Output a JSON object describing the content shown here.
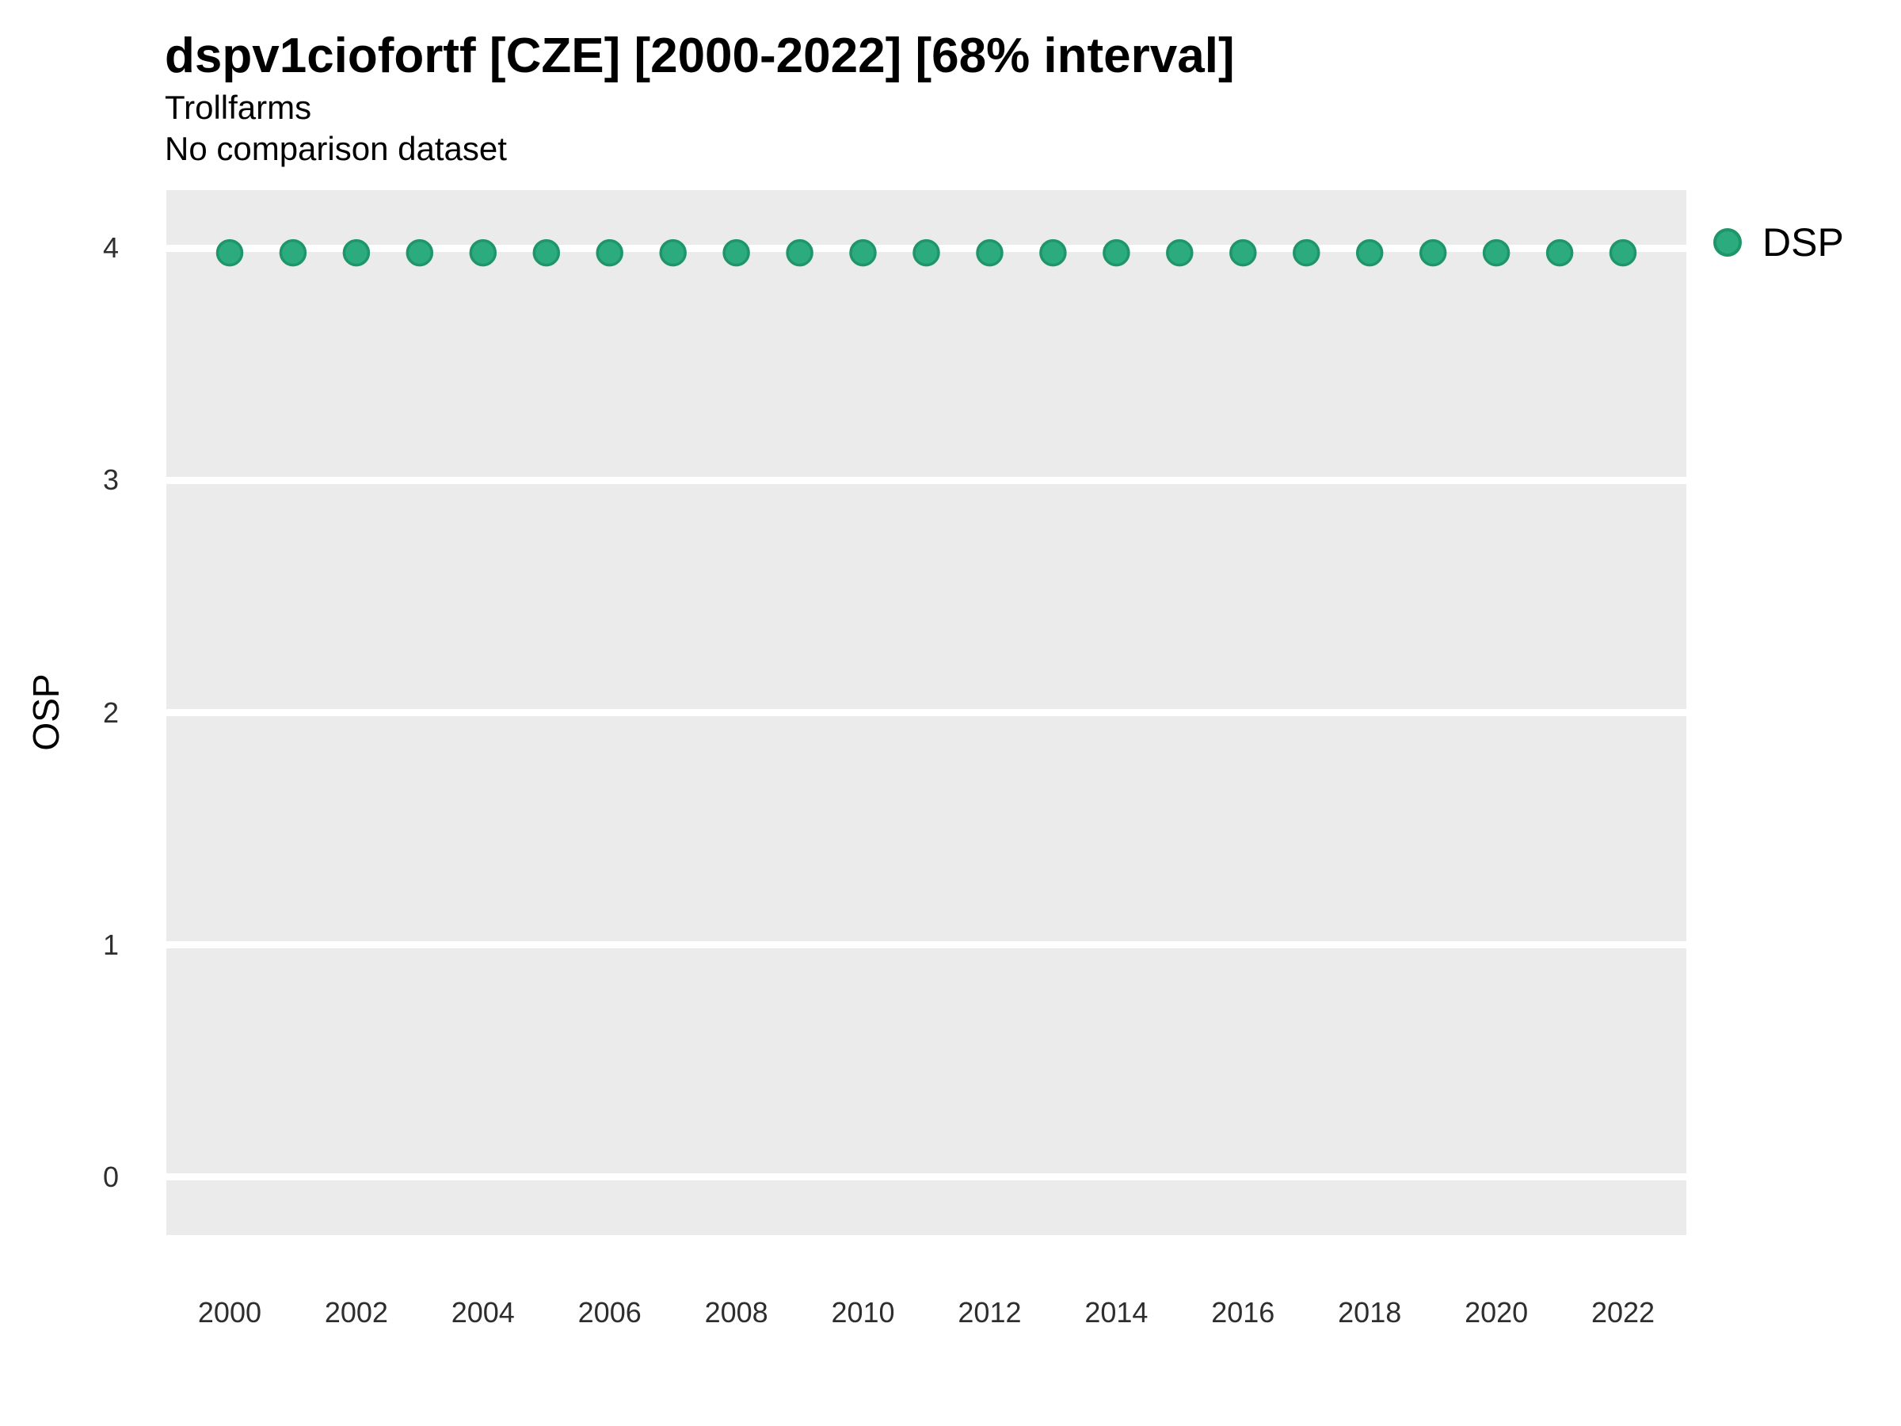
{
  "header": {
    "title": "dspv1ciofortf [CZE] [2000-2022] [68% interval]",
    "subtitle_line1": "Trollfarms",
    "subtitle_line2": "No comparison dataset"
  },
  "y_axis_title": "OSP",
  "legend": {
    "items": [
      {
        "label": "DSP",
        "color": "#2CAB7E",
        "border_color": "#1E9669"
      }
    ]
  },
  "chart_data": {
    "type": "scatter",
    "title": "dspv1ciofortf [CZE] [2000-2022] [68% interval]",
    "subtitle": [
      "Trollfarms",
      "No comparison dataset"
    ],
    "xlabel": "",
    "ylabel": "OSP",
    "x_ticks": [
      2000,
      2002,
      2004,
      2006,
      2008,
      2010,
      2012,
      2014,
      2016,
      2018,
      2020,
      2022
    ],
    "y_ticks": [
      0,
      1,
      2,
      3,
      4
    ],
    "xlim": [
      1999,
      2023
    ],
    "ylim": [
      -0.25,
      4.25
    ],
    "grid": "horizontal-major-only",
    "panel_background": "#EBEBEB",
    "gridline_color": "#FFFFFF",
    "legend_position": "right-top",
    "series": [
      {
        "name": "DSP",
        "point_color": "#2CAB7E",
        "point_stroke": "#1E9669",
        "x": [
          2000,
          2001,
          2002,
          2003,
          2004,
          2005,
          2006,
          2007,
          2008,
          2009,
          2010,
          2011,
          2012,
          2013,
          2014,
          2015,
          2016,
          2017,
          2018,
          2019,
          2020,
          2021,
          2022
        ],
        "y": [
          3.98,
          3.98,
          3.98,
          3.98,
          3.98,
          3.98,
          3.98,
          3.98,
          3.98,
          3.98,
          3.98,
          3.98,
          3.98,
          3.98,
          3.98,
          3.98,
          3.98,
          3.98,
          3.98,
          3.98,
          3.98,
          3.98,
          3.98
        ]
      }
    ]
  }
}
